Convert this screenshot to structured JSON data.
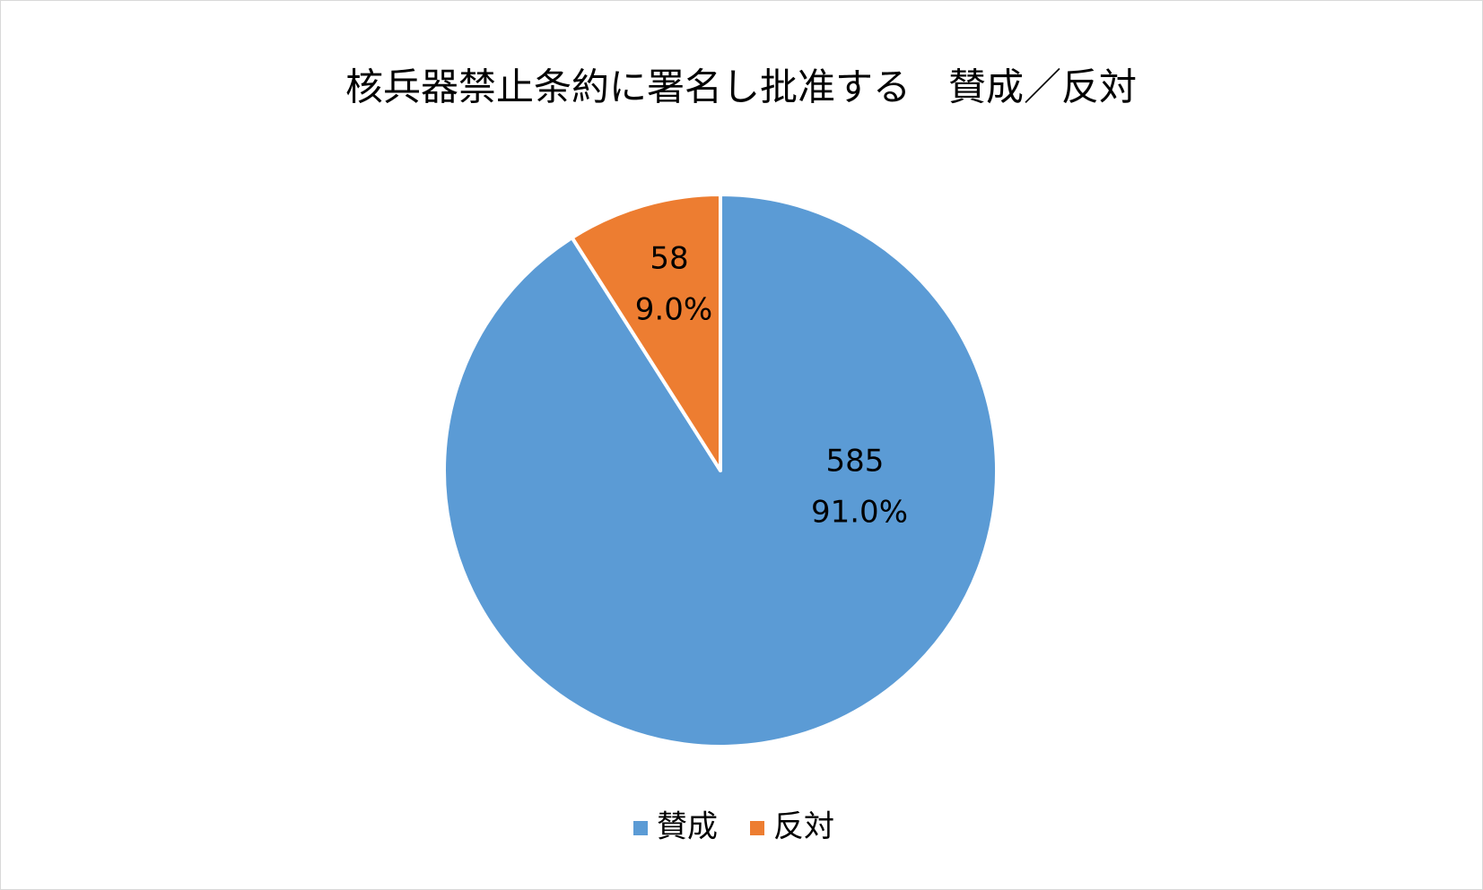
{
  "chart_data": {
    "type": "pie",
    "title": "核兵器禁止条約に署名し批准する　賛成／反対",
    "categories": [
      "賛成",
      "反対"
    ],
    "values": [
      585,
      58
    ],
    "percent_labels": [
      "91.0%",
      "9.0%"
    ],
    "colors": [
      "#5b9bd5",
      "#ed7d31"
    ],
    "legend": "bottom"
  }
}
